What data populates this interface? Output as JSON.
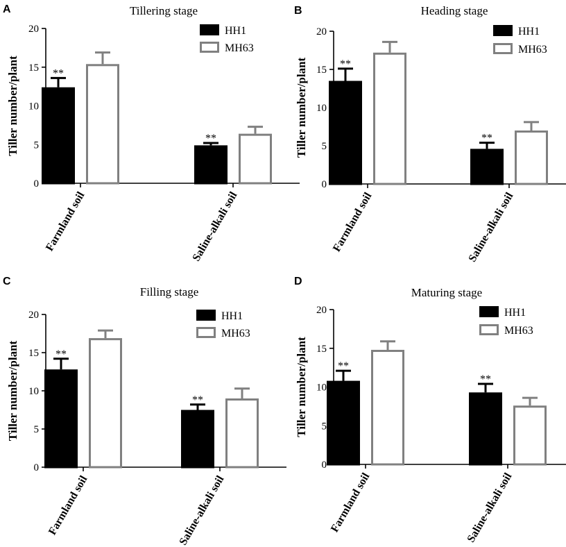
{
  "figure": {
    "panels": [
      {
        "letter": "A",
        "chart_data": {
          "type": "bar",
          "title": "Tillering stage",
          "xlabel": "",
          "ylabel": "Tiller number/plant",
          "ylim": [
            0,
            20
          ],
          "yticks": [
            "0",
            "5",
            "10",
            "15",
            "20"
          ],
          "categories": [
            "Farmland soil",
            "Saline-alkali soil"
          ],
          "series": [
            {
              "name": "HH1",
              "fill": "#000000",
              "stroke": "#000000",
              "values": [
                12.4,
                4.9
              ],
              "errors": [
                1.2,
                0.3
              ],
              "significance": [
                "**",
                "**"
              ]
            },
            {
              "name": "MH63",
              "fill": "#ffffff",
              "stroke": "#808080",
              "values": [
                15.4,
                6.4
              ],
              "errors": [
                1.5,
                0.9
              ],
              "significance": [
                "",
                ""
              ]
            }
          ]
        }
      },
      {
        "letter": "B",
        "chart_data": {
          "type": "bar",
          "title": "Heading stage",
          "xlabel": "",
          "ylabel": "Tiller number/plant",
          "ylim": [
            0,
            20
          ],
          "yticks": [
            "0",
            "5",
            "10",
            "15",
            "20"
          ],
          "categories": [
            "Farmland soil",
            "Saline-alkali soil"
          ],
          "series": [
            {
              "name": "HH1",
              "fill": "#000000",
              "stroke": "#000000",
              "values": [
                13.5,
                4.6
              ],
              "errors": [
                1.6,
                0.8
              ],
              "significance": [
                "**",
                "**"
              ]
            },
            {
              "name": "MH63",
              "fill": "#ffffff",
              "stroke": "#808080",
              "values": [
                17.2,
                7.0
              ],
              "errors": [
                1.4,
                1.1
              ],
              "significance": [
                "",
                ""
              ]
            }
          ]
        }
      },
      {
        "letter": "C",
        "chart_data": {
          "type": "bar",
          "title": "Filling stage",
          "xlabel": "",
          "ylabel": "Tiller number/plant",
          "ylim": [
            0,
            20
          ],
          "yticks": [
            "0",
            "5",
            "10",
            "15",
            "20"
          ],
          "categories": [
            "Farmland soil",
            "Saline-alkali soil"
          ],
          "series": [
            {
              "name": "HH1",
              "fill": "#000000",
              "stroke": "#000000",
              "values": [
                12.8,
                7.5
              ],
              "errors": [
                1.4,
                0.7
              ],
              "significance": [
                "**",
                "**"
              ]
            },
            {
              "name": "MH63",
              "fill": "#ffffff",
              "stroke": "#808080",
              "values": [
                16.9,
                9.0
              ],
              "errors": [
                1.0,
                1.3
              ],
              "significance": [
                "",
                ""
              ]
            }
          ]
        }
      },
      {
        "letter": "D",
        "chart_data": {
          "type": "bar",
          "title": "Maturing stage",
          "xlabel": "",
          "ylabel": "Tiller number/plant",
          "ylim": [
            0,
            20
          ],
          "yticks": [
            "0",
            "5",
            "10",
            "15",
            "20"
          ],
          "categories": [
            "Farmland soil",
            "Saline-alkali soil"
          ],
          "series": [
            {
              "name": "HH1",
              "fill": "#000000",
              "stroke": "#000000",
              "values": [
                10.8,
                9.3
              ],
              "errors": [
                1.3,
                1.1
              ],
              "significance": [
                "**",
                "**"
              ]
            },
            {
              "name": "MH63",
              "fill": "#ffffff",
              "stroke": "#808080",
              "values": [
                14.8,
                7.6
              ],
              "errors": [
                1.1,
                1.0
              ],
              "significance": [
                "",
                ""
              ]
            }
          ]
        }
      }
    ]
  }
}
